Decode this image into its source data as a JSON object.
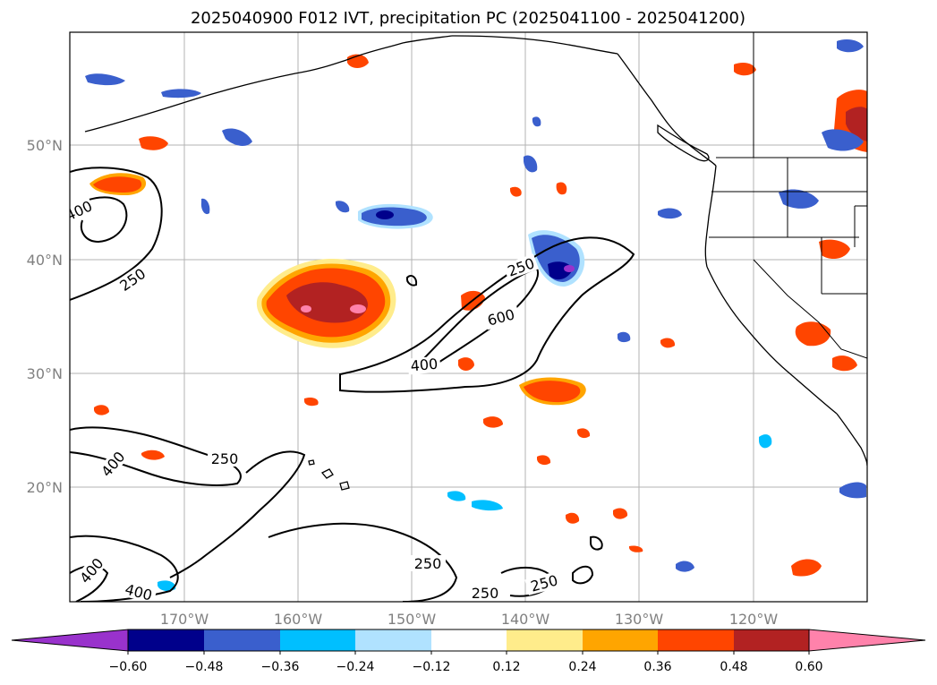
{
  "title": "2025040900 F012 IVT, precipitation PC (2025041100 - 2025041200)",
  "map": {
    "lat_ticks": [
      "50°N",
      "40°N",
      "30°N",
      "20°N"
    ],
    "lon_ticks": [
      "170°W",
      "160°W",
      "150°W",
      "140°W",
      "130°W",
      "120°W"
    ],
    "grid": true,
    "ivt_contour_levels": [
      250,
      400,
      600
    ],
    "ivt_contour_labels": [
      "400",
      "250",
      "250",
      "600",
      "400",
      "400",
      "250",
      "250",
      "250",
      "250",
      "400",
      "400"
    ]
  },
  "colorbar": {
    "ticks": [
      "−0.60",
      "−0.48",
      "−0.36",
      "−0.24",
      "−0.12",
      "0.12",
      "0.24",
      "0.36",
      "0.48",
      "0.60"
    ],
    "colors": [
      "#9932cc",
      "#00008b",
      "#3a5fcd",
      "#00bfff",
      "#b0e2ff",
      "#ffffff",
      "#ffec8b",
      "#ffa500",
      "#ff4500",
      "#b22222",
      "#ff82ab"
    ],
    "extend": "both"
  }
}
